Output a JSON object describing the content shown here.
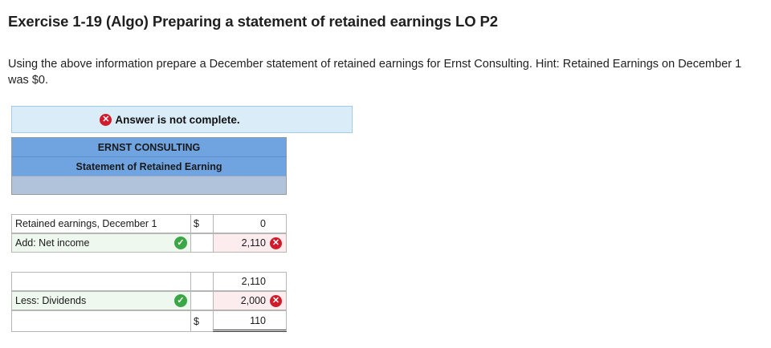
{
  "header": {
    "title": "Exercise 1-19 (Algo) Preparing a statement of retained earnings LO P2"
  },
  "instructions": "Using the above information prepare a December statement of retained earnings for Ernst Consulting. Hint: Retained Earnings on December 1 was $0.",
  "answer_status": {
    "text": "Answer is not complete."
  },
  "statement": {
    "company": "ERNST CONSULTING",
    "title": "Statement of Retained Earning",
    "rows": [
      {
        "label": "Retained earnings, December 1",
        "dollar": "$",
        "amount": "0"
      },
      {
        "label": "Add: Net income",
        "dollar": "",
        "amount": "2,110"
      },
      {
        "label": "",
        "dollar": "",
        "amount": "2,110"
      },
      {
        "label": "Less: Dividends",
        "dollar": "",
        "amount": "2,000"
      },
      {
        "label": "",
        "dollar": "$",
        "amount": "110"
      }
    ]
  },
  "colors": {
    "banner_bg": "#daecf8",
    "header_bg": "#6fa4e1",
    "header_blank_bg": "#b0c3db",
    "correct": "#3aa646",
    "incorrect": "#d11a2a"
  },
  "icons": {
    "incorrect": "x-circle-icon",
    "correct": "checkmark-circle-icon"
  }
}
